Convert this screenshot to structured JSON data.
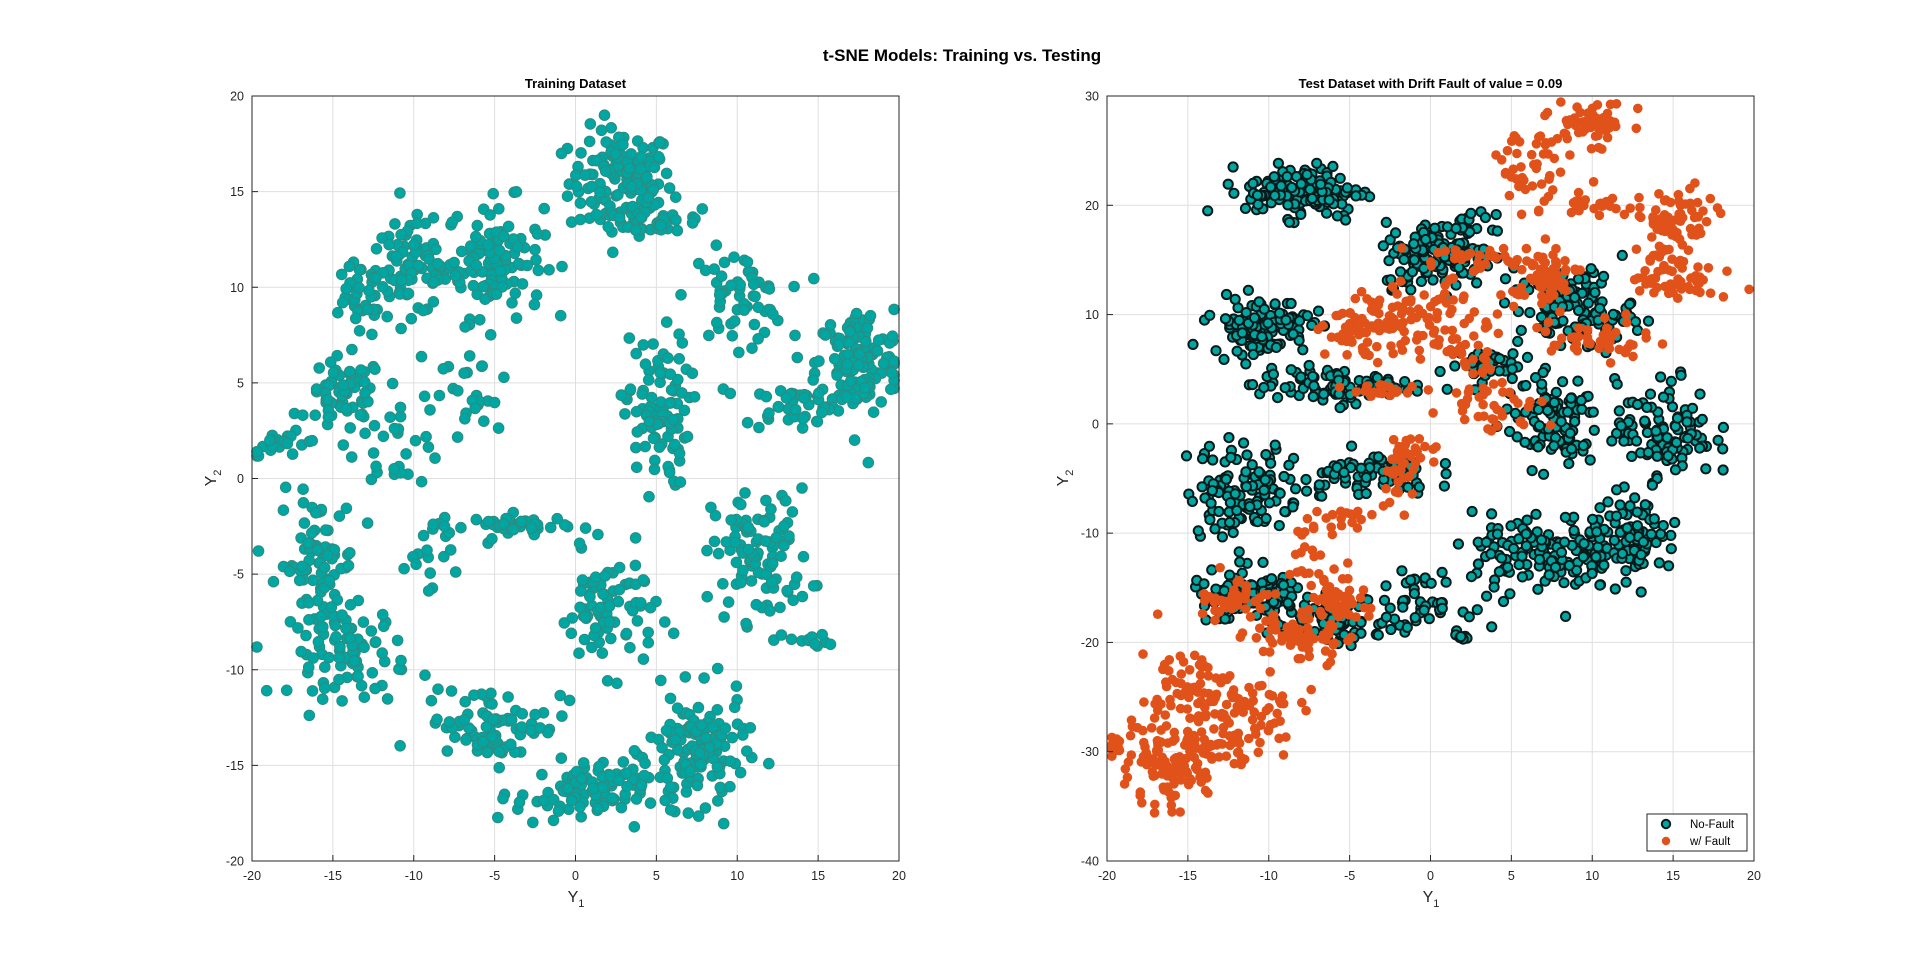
{
  "figure_title": "t-SNE Models: Training vs. Testing",
  "colors": {
    "no_fault": "#00a6a1",
    "no_fault_edge_train": "#2e8b80",
    "no_fault_edge_test": "#0a1a1a",
    "fault": "#e0521a"
  },
  "chart_data": [
    {
      "type": "scatter",
      "title": "Training Dataset",
      "xlabel": "Y",
      "xlabel_sub": "1",
      "ylabel": "Y",
      "ylabel_sub": "2",
      "xlim": [
        -20,
        20
      ],
      "ylim": [
        -20,
        20
      ],
      "xticks": [
        -20,
        -15,
        -10,
        -5,
        0,
        5,
        10,
        15,
        20
      ],
      "yticks": [
        -20,
        -15,
        -10,
        -5,
        0,
        5,
        10,
        15,
        20
      ],
      "grid": true,
      "series": [
        {
          "color": "#00a6a1",
          "clusters": [
            {
              "cx": 2.8,
              "cy": 15.5,
              "sx": 1.6,
              "sy": 1.4,
              "n": 140
            },
            {
              "cx": 5.5,
              "cy": 13.5,
              "sx": 1.6,
              "sy": 0.4,
              "n": 30
            },
            {
              "cx": -5.0,
              "cy": 11.5,
              "sx": 1.5,
              "sy": 1.5,
              "n": 110
            },
            {
              "cx": -10.2,
              "cy": 11.0,
              "sx": 1.5,
              "sy": 1.2,
              "n": 90
            },
            {
              "cx": -13.5,
              "cy": 9.2,
              "sx": 1.0,
              "sy": 1.0,
              "n": 30
            },
            {
              "cx": -14.2,
              "cy": 4.3,
              "sx": 1.2,
              "sy": 1.0,
              "n": 60
            },
            {
              "cx": -11.0,
              "cy": 2.0,
              "sx": 1.5,
              "sy": 1.2,
              "n": 30
            },
            {
              "cx": -18.0,
              "cy": 1.8,
              "sx": 1.2,
              "sy": 0.3,
              "n": 20
            },
            {
              "cx": 10.0,
              "cy": 9.5,
              "sx": 1.5,
              "sy": 1.2,
              "n": 60
            },
            {
              "cx": 17.5,
              "cy": 6.0,
              "sx": 1.3,
              "sy": 1.4,
              "n": 140
            },
            {
              "cx": 13.5,
              "cy": 3.8,
              "sx": 1.5,
              "sy": 0.6,
              "n": 40
            },
            {
              "cx": 5.0,
              "cy": 3.5,
              "sx": 1.0,
              "sy": 2.0,
              "n": 90
            },
            {
              "cx": -6.5,
              "cy": 4.3,
              "sx": 1.5,
              "sy": 1.5,
              "n": 25
            },
            {
              "cx": 11.5,
              "cy": -4.0,
              "sx": 1.5,
              "sy": 1.7,
              "n": 100
            },
            {
              "cx": -16.0,
              "cy": -4.5,
              "sx": 1.2,
              "sy": 1.8,
              "n": 80
            },
            {
              "cx": -14.0,
              "cy": -9.0,
              "sx": 1.8,
              "sy": 1.2,
              "n": 80
            },
            {
              "cx": -3.5,
              "cy": -2.5,
              "sx": 1.5,
              "sy": 0.3,
              "n": 40
            },
            {
              "cx": -9.0,
              "cy": -3.5,
              "sx": 0.8,
              "sy": 1.0,
              "n": 20
            },
            {
              "cx": 2.0,
              "cy": -7.0,
              "sx": 1.5,
              "sy": 1.5,
              "n": 80
            },
            {
              "cx": 7.5,
              "cy": -14.3,
              "sx": 1.5,
              "sy": 1.5,
              "n": 130
            },
            {
              "cx": -5.0,
              "cy": -12.8,
              "sx": 2.2,
              "sy": 1.0,
              "n": 80
            },
            {
              "cx": 0.3,
              "cy": -16.5,
              "sx": 2.0,
              "sy": 0.8,
              "n": 90
            },
            {
              "cx": 14.8,
              "cy": -8.5,
              "sx": 0.8,
              "sy": 0.2,
              "n": 12
            },
            {
              "cx": 18.0,
              "cy": 0.8,
              "sx": 0.1,
              "sy": 0.1,
              "n": 1
            }
          ]
        }
      ]
    },
    {
      "type": "scatter",
      "title": "Test Dataset with Drift Fault of value = 0.09",
      "xlabel": "Y",
      "xlabel_sub": "1",
      "ylabel": "Y",
      "ylabel_sub": "2",
      "xlim": [
        -20,
        20
      ],
      "ylim": [
        -40,
        30
      ],
      "xticks": [
        -20,
        -15,
        -10,
        -5,
        0,
        5,
        10,
        15,
        20
      ],
      "yticks": [
        -40,
        -30,
        -20,
        -10,
        0,
        10,
        20,
        30
      ],
      "grid": true,
      "legend": "bottom-right",
      "series": [
        {
          "name": "No-Fault",
          "color": "#00a6a1",
          "clusters": [
            {
              "cx": -7.8,
              "cy": 21.3,
              "sx": 1.8,
              "sy": 1.2,
              "n": 140
            },
            {
              "cx": 0.5,
              "cy": 15.5,
              "sx": 1.7,
              "sy": 1.5,
              "n": 140
            },
            {
              "cx": -10.5,
              "cy": 9.0,
              "sx": 1.5,
              "sy": 1.3,
              "n": 120
            },
            {
              "cx": 9.0,
              "cy": 10.5,
              "sx": 1.8,
              "sy": 1.8,
              "n": 110
            },
            {
              "cx": -6.0,
              "cy": 3.5,
              "sx": 2.5,
              "sy": 0.8,
              "n": 90
            },
            {
              "cx": 3.0,
              "cy": 5.5,
              "sx": 1.2,
              "sy": 0.8,
              "n": 40
            },
            {
              "cx": 7.5,
              "cy": 0.0,
              "sx": 1.5,
              "sy": 2.0,
              "n": 100
            },
            {
              "cx": 14.5,
              "cy": -0.5,
              "sx": 1.5,
              "sy": 2.2,
              "n": 110
            },
            {
              "cx": -11.5,
              "cy": -6.0,
              "sx": 1.8,
              "sy": 2.2,
              "n": 120
            },
            {
              "cx": -4.0,
              "cy": -4.5,
              "sx": 2.0,
              "sy": 1.0,
              "n": 70
            },
            {
              "cx": 7.0,
              "cy": -12.0,
              "sx": 2.2,
              "sy": 1.8,
              "n": 130
            },
            {
              "cx": 12.5,
              "cy": -10.5,
              "sx": 1.5,
              "sy": 1.8,
              "n": 100
            },
            {
              "cx": -11.0,
              "cy": -16.0,
              "sx": 2.0,
              "sy": 1.3,
              "n": 110
            },
            {
              "cx": -6.0,
              "cy": -18.0,
              "sx": 1.5,
              "sy": 1.0,
              "n": 60
            },
            {
              "cx": -1.0,
              "cy": -16.5,
              "sx": 1.5,
              "sy": 1.2,
              "n": 50
            },
            {
              "cx": 2.5,
              "cy": 18.0,
              "sx": 0.8,
              "sy": 0.6,
              "n": 20
            },
            {
              "cx": 2.0,
              "cy": -19.5,
              "sx": 0.3,
              "sy": 0.2,
              "n": 6
            }
          ]
        },
        {
          "name": "w/ Fault",
          "color": "#e0521a",
          "clusters": [
            {
              "cx": 10.0,
              "cy": 27.5,
              "sx": 1.2,
              "sy": 1.0,
              "n": 60
            },
            {
              "cx": 6.0,
              "cy": 23.5,
              "sx": 1.5,
              "sy": 1.8,
              "n": 40
            },
            {
              "cx": 15.0,
              "cy": 18.5,
              "sx": 1.3,
              "sy": 1.5,
              "n": 70
            },
            {
              "cx": 15.0,
              "cy": 13.5,
              "sx": 1.3,
              "sy": 1.3,
              "n": 60
            },
            {
              "cx": 10.0,
              "cy": 20.0,
              "sx": 1.2,
              "sy": 0.5,
              "n": 25
            },
            {
              "cx": 7.0,
              "cy": 13.0,
              "sx": 1.0,
              "sy": 1.5,
              "n": 60
            },
            {
              "cx": 10.5,
              "cy": 7.5,
              "sx": 1.5,
              "sy": 0.8,
              "n": 40
            },
            {
              "cx": 3.5,
              "cy": 15.0,
              "sx": 2.5,
              "sy": 0.8,
              "n": 40
            },
            {
              "cx": -4.0,
              "cy": 8.5,
              "sx": 1.3,
              "sy": 1.2,
              "n": 70
            },
            {
              "cx": 0.0,
              "cy": 10.0,
              "sx": 2.0,
              "sy": 1.5,
              "n": 60
            },
            {
              "cx": 2.0,
              "cy": 7.0,
              "sx": 1.5,
              "sy": 1.0,
              "n": 30
            },
            {
              "cx": 4.0,
              "cy": 2.0,
              "sx": 1.5,
              "sy": 1.5,
              "n": 40
            },
            {
              "cx": -3.0,
              "cy": 3.0,
              "sx": 1.2,
              "sy": 0.3,
              "n": 20
            },
            {
              "cx": -1.0,
              "cy": -2.5,
              "sx": 0.8,
              "sy": 0.8,
              "n": 25
            },
            {
              "cx": -2.0,
              "cy": -5.0,
              "sx": 0.6,
              "sy": 1.5,
              "n": 20
            },
            {
              "cx": -5.0,
              "cy": -8.5,
              "sx": 0.8,
              "sy": 0.3,
              "n": 12
            },
            {
              "cx": -7.0,
              "cy": -13.0,
              "sx": 1.0,
              "sy": 2.5,
              "n": 35
            },
            {
              "cx": -5.5,
              "cy": -16.0,
              "sx": 0.8,
              "sy": 1.0,
              "n": 40
            },
            {
              "cx": -12.0,
              "cy": -16.0,
              "sx": 1.2,
              "sy": 1.2,
              "n": 40
            },
            {
              "cx": -8.0,
              "cy": -19.5,
              "sx": 1.5,
              "sy": 1.2,
              "n": 60
            },
            {
              "cx": -15.0,
              "cy": -25.0,
              "sx": 1.5,
              "sy": 2.5,
              "n": 90
            },
            {
              "cx": -11.0,
              "cy": -27.0,
              "sx": 1.5,
              "sy": 2.0,
              "n": 60
            },
            {
              "cx": -16.5,
              "cy": -32.0,
              "sx": 1.3,
              "sy": 1.5,
              "n": 90
            },
            {
              "cx": -19.5,
              "cy": -29.5,
              "sx": 0.6,
              "sy": 0.8,
              "n": 15
            },
            {
              "cx": -13.5,
              "cy": -30.0,
              "sx": 1.0,
              "sy": 1.0,
              "n": 25
            }
          ]
        }
      ]
    }
  ]
}
